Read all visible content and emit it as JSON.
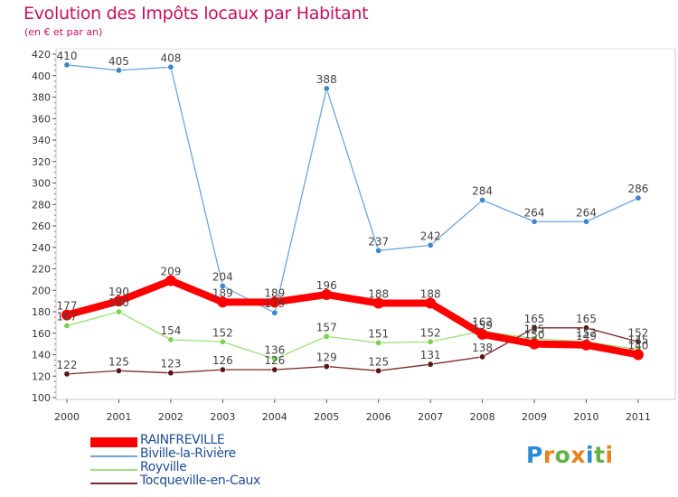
{
  "title": "Evolution des Impôts locaux par Habitant",
  "subtitle": "(en € et par an)",
  "logo": {
    "p": "P",
    "r": "r",
    "o": "o",
    "x": "x",
    "i": "i",
    "t": "t",
    "i2": "i"
  },
  "chart_data": {
    "type": "line",
    "title": "Evolution des Impôts locaux par Habitant",
    "ylabel": "(en € et par an)",
    "xlabel": "",
    "ylim": [
      100,
      420
    ],
    "yticks": [
      100,
      120,
      140,
      160,
      180,
      200,
      220,
      240,
      260,
      280,
      300,
      320,
      340,
      360,
      380,
      400,
      420
    ],
    "categories": [
      "2000",
      "2001",
      "2002",
      "2003",
      "2004",
      "2005",
      "2006",
      "2007",
      "2008",
      "2009",
      "2010",
      "2011"
    ],
    "grid": false,
    "legend_position": "bottom-left",
    "series": [
      {
        "name": "RAINFREVILLE",
        "color": "#ff0000",
        "values": [
          177,
          190,
          209,
          189,
          189,
          196,
          188,
          188,
          159,
          150,
          149,
          140
        ],
        "labels": [
          "177",
          "190",
          "209",
          "189",
          "189",
          "196",
          "188",
          "188",
          "159",
          "150",
          "149",
          "140"
        ]
      },
      {
        "name": "Biville-la-Rivière",
        "color": "#6fa5d8",
        "values": [
          410,
          405,
          408,
          204,
          179,
          388,
          237,
          242,
          284,
          264,
          264,
          286
        ],
        "labels": [
          "410",
          "405",
          "408",
          "204",
          "179",
          "388",
          "237",
          "242",
          "284",
          "264",
          "264",
          "286"
        ]
      },
      {
        "name": "Royville",
        "color": "#9ee07a",
        "values": [
          167,
          180,
          154,
          152,
          136,
          157,
          151,
          152,
          162,
          155,
          152,
          145
        ],
        "labels": [
          "167",
          "180",
          "154",
          "152",
          "136",
          "157",
          "151",
          "152",
          "162",
          "155",
          "152",
          "145"
        ]
      },
      {
        "name": "Tocqueville-en-Caux",
        "color": "#7a2a2a",
        "values": [
          122,
          125,
          123,
          126,
          126,
          129,
          125,
          131,
          138,
          165,
          165,
          152
        ],
        "labels": [
          "122",
          "125",
          "123",
          "126",
          "126",
          "129",
          "125",
          "131",
          "138",
          "165",
          "165",
          "152"
        ]
      }
    ]
  }
}
